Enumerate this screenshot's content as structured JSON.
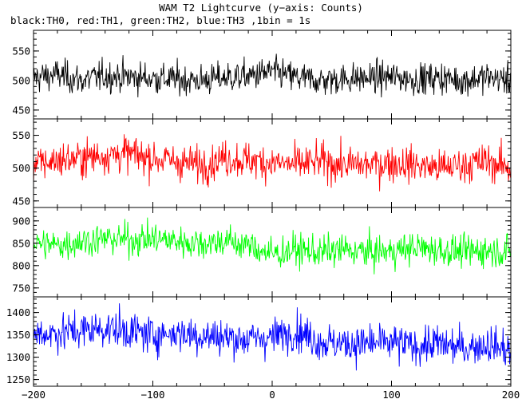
{
  "title": "WAM T2 Lightcurve (y−axis: Counts)",
  "subtitle": "black:TH0, red:TH1, green:TH2, blue:TH3 ,1bin = 1s",
  "chart_data": {
    "type": "line",
    "title": "WAM T2 Lightcurve (y−axis: Counts)",
    "subtitle": "black:TH0, red:TH1, green:TH2, blue:TH3 ,1bin = 1s",
    "xlabel": "",
    "ylabel": "Counts",
    "xlim": [
      -200,
      200
    ],
    "x_ticks": [
      -200,
      -100,
      0,
      100,
      200
    ],
    "x_tick_labels": [
      "−200",
      "−100",
      "0",
      "100",
      "200"
    ],
    "bin_seconds": 1,
    "grid": false,
    "panels": [
      {
        "name": "TH0",
        "color": "#000000",
        "ylim": [
          435,
          585
        ],
        "y_ticks": [
          450,
          500,
          550
        ],
        "mean": 505,
        "noise": 22,
        "x": [
          -200,
          -180,
          -160,
          -140,
          -120,
          -100,
          -80,
          -60,
          -40,
          -20,
          0,
          20,
          40,
          60,
          80,
          100,
          120,
          140,
          160,
          180,
          200
        ],
        "values": [
          505,
          510,
          500,
          508,
          506,
          504,
          502,
          500,
          505,
          507,
          515,
          505,
          500,
          503,
          504,
          506,
          502,
          505,
          500,
          506,
          500
        ]
      },
      {
        "name": "TH1",
        "color": "#ff0000",
        "ylim": [
          440,
          575
        ],
        "y_ticks": [
          450,
          500,
          550
        ],
        "mean": 510,
        "noise": 23,
        "x": [
          -200,
          -180,
          -160,
          -140,
          -120,
          -100,
          -80,
          -60,
          -40,
          -20,
          0,
          20,
          40,
          60,
          80,
          100,
          120,
          140,
          160,
          180,
          200
        ],
        "values": [
          505,
          512,
          515,
          520,
          522,
          515,
          510,
          505,
          515,
          512,
          508,
          505,
          510,
          505,
          505,
          508,
          505,
          500,
          505,
          510,
          500
        ]
      },
      {
        "name": "TH2",
        "color": "#00ff00",
        "ylim": [
          730,
          930
        ],
        "y_ticks": [
          750,
          800,
          850,
          900
        ],
        "mean": 845,
        "noise": 30,
        "x": [
          -200,
          -180,
          -160,
          -140,
          -120,
          -100,
          -80,
          -60,
          -40,
          -20,
          0,
          20,
          40,
          60,
          80,
          100,
          120,
          140,
          160,
          180,
          200
        ],
        "values": [
          850,
          845,
          855,
          860,
          858,
          860,
          855,
          850,
          855,
          845,
          825,
          835,
          830,
          835,
          830,
          832,
          840,
          835,
          830,
          835,
          830
        ]
      },
      {
        "name": "TH3",
        "color": "#0000ff",
        "ylim": [
          1235,
          1435
        ],
        "y_ticks": [
          1250,
          1300,
          1350,
          1400
        ],
        "mean": 1340,
        "noise": 35,
        "x": [
          -200,
          -180,
          -160,
          -140,
          -120,
          -100,
          -80,
          -60,
          -40,
          -20,
          0,
          20,
          40,
          60,
          80,
          100,
          120,
          140,
          160,
          180,
          200
        ],
        "values": [
          1350,
          1355,
          1360,
          1365,
          1358,
          1350,
          1355,
          1348,
          1345,
          1340,
          1345,
          1360,
          1335,
          1330,
          1330,
          1332,
          1325,
          1330,
          1320,
          1330,
          1315
        ]
      }
    ]
  }
}
